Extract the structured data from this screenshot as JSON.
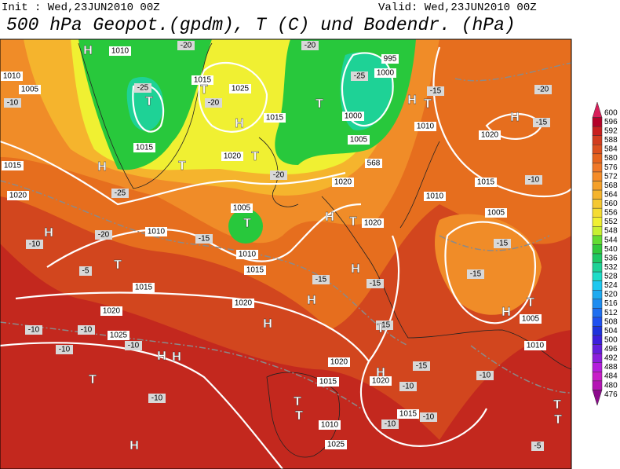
{
  "header": {
    "init": "Init : Wed,23JUN2010 00Z",
    "valid": "Valid: Wed,23JUN2010 00Z",
    "title": "500 hPa Geopot.(gpdm), T (C) und Bodendr. (hPa)"
  },
  "colorbar": {
    "labels": [
      600,
      596,
      592,
      588,
      584,
      580,
      576,
      572,
      568,
      564,
      560,
      556,
      552,
      548,
      544,
      540,
      536,
      532,
      528,
      524,
      520,
      516,
      512,
      508,
      504,
      500,
      496,
      492,
      488,
      484,
      480,
      476
    ],
    "colors": [
      "#d81e5a",
      "#b40028",
      "#c81e1e",
      "#d23c1e",
      "#dc501e",
      "#e6641e",
      "#f07828",
      "#f58c28",
      "#f5a028",
      "#f5b42d",
      "#f5c832",
      "#f5dc32",
      "#f0f032",
      "#c8f032",
      "#64dc32",
      "#32c83c",
      "#1ec864",
      "#1ed296",
      "#1edcc8",
      "#1ec8f0",
      "#1eaaf0",
      "#1e8cf0",
      "#1e6ef0",
      "#1e50f0",
      "#1e32dc",
      "#3c1edc",
      "#641edc",
      "#8c1edc",
      "#b41edc",
      "#c81ec8",
      "#b414b4",
      "#8c0a8c"
    ]
  },
  "map": {
    "labels": [
      "H",
      "1010",
      "1010",
      "1005",
      "-25",
      "T",
      "-20",
      "1015",
      "T",
      "-20",
      "1025",
      "H",
      "1015",
      "1015",
      "H",
      "T",
      "1020",
      "T",
      "-20",
      "1020",
      "-20",
      "T",
      "-25",
      "995",
      "1000",
      "1000",
      "1005",
      "568",
      "H",
      "T",
      "-15",
      "1010",
      "-20",
      "H",
      "-15",
      "1020",
      "1015",
      "-10",
      "1010",
      "1005",
      "-15",
      "-15",
      "T",
      "H",
      "1005",
      "1010",
      "1015",
      "1020",
      "H",
      "-10",
      "-20",
      "1010",
      "1005",
      "T",
      "-15",
      "1010",
      "1015",
      "-5",
      "T",
      "1015",
      "1020",
      "1020",
      "H",
      "H",
      "-15",
      "H",
      "-15",
      "1020",
      "H",
      "T",
      "-10",
      "-25",
      "-15",
      "T",
      "1020",
      "H",
      "1020",
      "-15",
      "-10",
      "-10",
      "-10",
      "1025",
      "-10",
      "-10",
      "-10",
      "H",
      "H",
      "T",
      "-10",
      "1015",
      "T",
      "T",
      "-10",
      "1015",
      "-10",
      "1010",
      "1025",
      "H",
      "T",
      "-5",
      "T"
    ]
  }
}
